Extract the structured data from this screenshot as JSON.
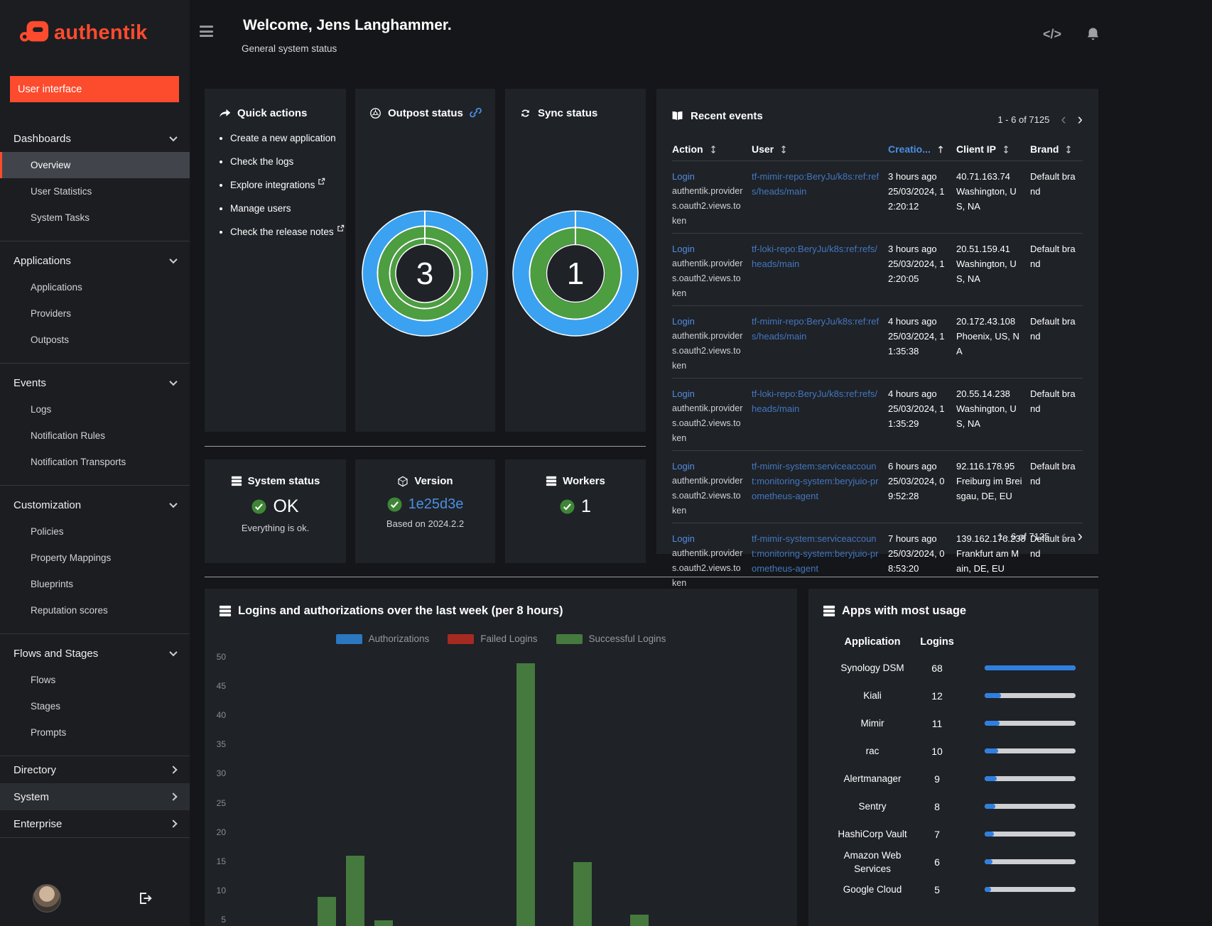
{
  "brand": {
    "name": "authentik",
    "accent": "#fd4b2d"
  },
  "sidebar": {
    "user_interface_button": "User interface",
    "sections": [
      {
        "label": "Dashboards",
        "expanded": true,
        "items": [
          {
            "label": "Overview",
            "active": true
          },
          {
            "label": "User Statistics"
          },
          {
            "label": "System Tasks"
          }
        ]
      },
      {
        "label": "Applications",
        "expanded": true,
        "items": [
          {
            "label": "Applications"
          },
          {
            "label": "Providers"
          },
          {
            "label": "Outposts"
          }
        ]
      },
      {
        "label": "Events",
        "expanded": true,
        "items": [
          {
            "label": "Logs"
          },
          {
            "label": "Notification Rules"
          },
          {
            "label": "Notification Transports"
          }
        ]
      },
      {
        "label": "Customization",
        "expanded": true,
        "items": [
          {
            "label": "Policies"
          },
          {
            "label": "Property Mappings"
          },
          {
            "label": "Blueprints"
          },
          {
            "label": "Reputation scores"
          }
        ]
      },
      {
        "label": "Flows and Stages",
        "expanded": true,
        "items": [
          {
            "label": "Flows"
          },
          {
            "label": "Stages"
          },
          {
            "label": "Prompts"
          }
        ]
      },
      {
        "label": "Directory",
        "expanded": false,
        "items": []
      },
      {
        "label": "System",
        "expanded": false,
        "highlighted": true,
        "items": []
      },
      {
        "label": "Enterprise",
        "expanded": false,
        "items": []
      }
    ]
  },
  "header": {
    "title": "Welcome, Jens Langhammer.",
    "subtitle": "General system status",
    "code_icon_label": "</>"
  },
  "quick_actions": {
    "title": "Quick actions",
    "items": [
      {
        "label": "Create a new application",
        "external": false
      },
      {
        "label": "Check the logs",
        "external": false
      },
      {
        "label": "Explore integrations",
        "external": true
      },
      {
        "label": "Manage users",
        "external": false
      },
      {
        "label": "Check the release notes",
        "external": true
      }
    ]
  },
  "outpost_status": {
    "title": "Outpost status",
    "value": "3"
  },
  "sync_status": {
    "title": "Sync status",
    "value": "1"
  },
  "recent_events": {
    "title": "Recent events",
    "pagination": "1 - 6 of 7125",
    "columns": [
      "Action",
      "User",
      "Creatio...",
      "Client IP",
      "Brand"
    ],
    "sorted_column_index": 2,
    "rows": [
      {
        "action": "Login",
        "action_app": "authentik.providers.oauth2.views.token",
        "user": "tf-mimir-repo:BeryJu/k8s:ref:refs/heads/main",
        "created_relative": "3 hours ago",
        "created_absolute": "25/03/2024, 12:20:12",
        "client_ip": "40.71.163.74",
        "geo": "Washington, US, NA",
        "brand": "Default brand"
      },
      {
        "action": "Login",
        "action_app": "authentik.providers.oauth2.views.token",
        "user": "tf-loki-repo:BeryJu/k8s:ref:refs/heads/main",
        "created_relative": "3 hours ago",
        "created_absolute": "25/03/2024, 12:20:05",
        "client_ip": "20.51.159.41",
        "geo": "Washington, US, NA",
        "brand": "Default brand"
      },
      {
        "action": "Login",
        "action_app": "authentik.providers.oauth2.views.token",
        "user": "tf-mimir-repo:BeryJu/k8s:ref:refs/heads/main",
        "created_relative": "4 hours ago",
        "created_absolute": "25/03/2024, 11:35:38",
        "client_ip": "20.172.43.108",
        "geo": "Phoenix, US, NA",
        "brand": "Default brand"
      },
      {
        "action": "Login",
        "action_app": "authentik.providers.oauth2.views.token",
        "user": "tf-loki-repo:BeryJu/k8s:ref:refs/heads/main",
        "created_relative": "4 hours ago",
        "created_absolute": "25/03/2024, 11:35:29",
        "client_ip": "20.55.14.238",
        "geo": "Washington, US, NA",
        "brand": "Default brand"
      },
      {
        "action": "Login",
        "action_app": "authentik.providers.oauth2.views.token",
        "user": "tf-mimir-system:serviceaccount:monitoring-system:beryjuio-prometheus-agent",
        "created_relative": "6 hours ago",
        "created_absolute": "25/03/2024, 09:52:28",
        "client_ip": "92.116.178.95",
        "geo": "Freiburg im Breisgau, DE, EU",
        "brand": "Default brand"
      },
      {
        "action": "Login",
        "action_app": "authentik.providers.oauth2.views.token",
        "user": "tf-mimir-system:serviceaccount:monitoring-system:beryjuio-prometheus-agent",
        "created_relative": "7 hours ago",
        "created_absolute": "25/03/2024, 08:53:20",
        "client_ip": "139.162.176.238",
        "geo": "Frankfurt am Main, DE, EU",
        "brand": "Default brand"
      }
    ]
  },
  "system_status": {
    "title": "System status",
    "value": "OK",
    "subtitle": "Everything is ok."
  },
  "version": {
    "title": "Version",
    "value": "1e25d3e",
    "subtitle": "Based on 2024.2.2"
  },
  "workers": {
    "title": "Workers",
    "value": "1"
  },
  "chart_data": {
    "type": "bar",
    "title": "Logins and authorizations over the last week (per 8 hours)",
    "ylim": [
      0,
      50
    ],
    "y_ticks": [
      50,
      45,
      40,
      35,
      30,
      25,
      20,
      15,
      10,
      5
    ],
    "x_slots": 21,
    "x_axis_labels_visible": false,
    "grid": false,
    "legend_position": "top",
    "series": [
      {
        "name": "Authorizations",
        "color": "#2b77c0",
        "bars": []
      },
      {
        "name": "Failed Logins",
        "color": "#a52a21",
        "bars": []
      },
      {
        "name": "Successful Logins",
        "color": "#45793e",
        "bars": [
          {
            "slot": 3,
            "value": 9
          },
          {
            "slot": 4,
            "value": 16
          },
          {
            "slot": 5,
            "value": 5
          },
          {
            "slot": 10,
            "value": 49
          },
          {
            "slot": 12,
            "value": 15
          },
          {
            "slot": 14,
            "value": 6
          },
          {
            "slot": 15,
            "value": 4
          }
        ]
      }
    ]
  },
  "apps_usage": {
    "title": "Apps with most usage",
    "columns": [
      "Application",
      "Logins"
    ],
    "max_logins": 68,
    "bar_color": "#2f7fe0",
    "rows": [
      {
        "application": "Synology DSM",
        "logins": 68
      },
      {
        "application": "Kiali",
        "logins": 12
      },
      {
        "application": "Mimir",
        "logins": 11
      },
      {
        "application": "rac",
        "logins": 10
      },
      {
        "application": "Alertmanager",
        "logins": 9
      },
      {
        "application": "Sentry",
        "logins": 8
      },
      {
        "application": "HashiCorp Vault",
        "logins": 7
      },
      {
        "application": "Amazon Web Services",
        "logins": 6
      },
      {
        "application": "Google Cloud",
        "logins": 5
      }
    ]
  },
  "colors": {
    "accent": "#fd4b2d",
    "link_blue": "#548ce0",
    "user_link_blue": "#4377c0",
    "success_green": "#3e8635",
    "donut_blue": "#3aa2f0",
    "donut_green": "#4c9e41",
    "sorted_header_blue": "#4a90e2"
  }
}
